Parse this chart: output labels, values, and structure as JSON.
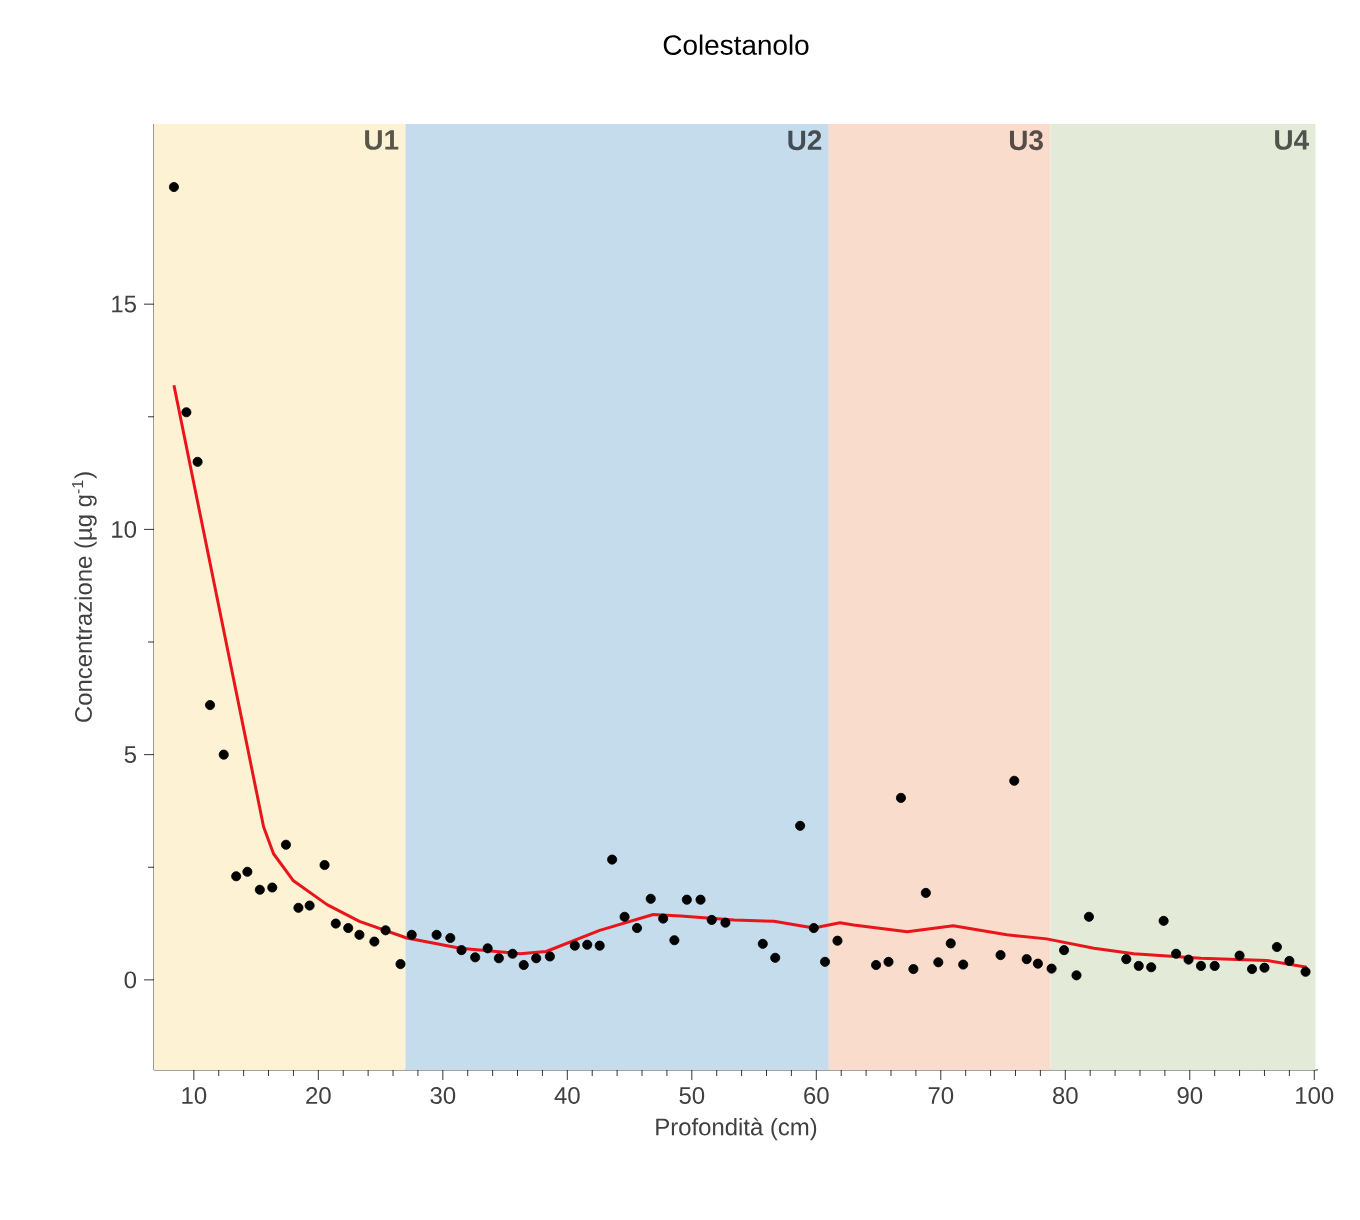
{
  "chart_data": {
    "type": "scatter",
    "title": "Colestanolo",
    "xlabel": "Profondità (cm)",
    "ylabel": "Concentrazione (µg g$^{-1}$)",
    "xlim": [
      6.8,
      100.3
    ],
    "ylim": [
      -2,
      19
    ],
    "xticks": [
      10,
      20,
      30,
      40,
      50,
      60,
      70,
      80,
      90,
      100
    ],
    "yticks": [
      0,
      5,
      10,
      15
    ],
    "grid": false,
    "bands": [
      {
        "axis": "x",
        "from": 6.8,
        "to": 27,
        "label": "U1",
        "color": "#fdf2d3"
      },
      {
        "axis": "x",
        "from": 27,
        "to": 61,
        "label": "U2",
        "color": "#c5dced"
      },
      {
        "axis": "x",
        "from": 61,
        "to": 78.8,
        "label": "U3",
        "color": "#fadccc"
      },
      {
        "axis": "x",
        "from": 78.8,
        "to": 100.1,
        "label": "U4",
        "color": "#e3ebd8"
      }
    ],
    "series": [
      {
        "color": "#000000",
        "marker": "circle",
        "x": [
          8.4,
          9.4,
          10.3,
          11.3,
          12.4,
          13.4,
          14.3,
          15.3,
          16.3,
          17.4,
          18.4,
          19.3,
          20.5,
          21.4,
          22.4,
          23.3,
          24.5,
          25.4,
          26.6,
          27.5,
          29.5,
          30.6,
          31.5,
          32.6,
          33.6,
          34.5,
          35.6,
          36.5,
          37.5,
          38.6,
          40.6,
          41.6,
          42.6,
          43.6,
          44.6,
          45.6,
          46.7,
          47.7,
          48.6,
          49.6,
          50.7,
          51.6,
          52.7,
          55.7,
          56.7,
          58.7,
          59.8,
          60.7,
          61.7,
          64.8,
          65.8,
          66.8,
          67.8,
          68.8,
          69.8,
          70.8,
          71.8,
          74.8,
          75.9,
          76.9,
          77.8,
          78.9,
          79.9,
          80.9,
          81.9,
          84.9,
          85.9,
          86.9,
          87.9,
          88.9,
          89.9,
          90.9,
          92.0,
          94.0,
          95.0,
          96.0,
          97.0,
          98.0,
          99.3
        ],
        "values": [
          17.6,
          12.6,
          11.5,
          6.1,
          5.0,
          2.3,
          2.4,
          2.0,
          2.05,
          3.0,
          1.6,
          1.65,
          2.55,
          1.25,
          1.15,
          1.0,
          0.85,
          1.1,
          0.35,
          1.0,
          1.0,
          0.93,
          0.66,
          0.5,
          0.7,
          0.48,
          0.58,
          0.33,
          0.48,
          0.52,
          0.76,
          0.78,
          0.76,
          2.67,
          1.4,
          1.15,
          1.8,
          1.36,
          0.88,
          1.78,
          1.78,
          1.33,
          1.27,
          0.8,
          0.49,
          3.42,
          1.15,
          0.4,
          0.87,
          0.33,
          0.4,
          4.04,
          0.24,
          1.93,
          0.39,
          0.81,
          0.34,
          0.55,
          4.42,
          0.46,
          0.36,
          0.25,
          0.66,
          0.1,
          1.4,
          0.46,
          0.31,
          0.28,
          1.31,
          0.58,
          0.45,
          0.31,
          0.31,
          0.54,
          0.24,
          0.27,
          0.73,
          0.42,
          0.18
        ]
      },
      {
        "type": "line",
        "color": "#e8161b",
        "marker": "none",
        "line_style": "solid",
        "x": [
          8.4,
          15.6,
          16.4,
          18.0,
          20.7,
          23.3,
          27.1,
          31.4,
          36.2,
          38.3,
          42.6,
          46.9,
          49.1,
          53.4,
          56.6,
          59.8,
          61.9,
          63.0,
          67.3,
          71.0,
          75.3,
          78.5,
          82.3,
          85.5,
          90.9,
          96.2,
          99.4
        ],
        "values": [
          13.2,
          3.4,
          2.8,
          2.2,
          1.67,
          1.3,
          0.93,
          0.7,
          0.58,
          0.63,
          1.1,
          1.45,
          1.42,
          1.33,
          1.3,
          1.15,
          1.27,
          1.22,
          1.07,
          1.2,
          1.0,
          0.91,
          0.7,
          0.58,
          0.48,
          0.43,
          0.28
        ]
      }
    ]
  }
}
